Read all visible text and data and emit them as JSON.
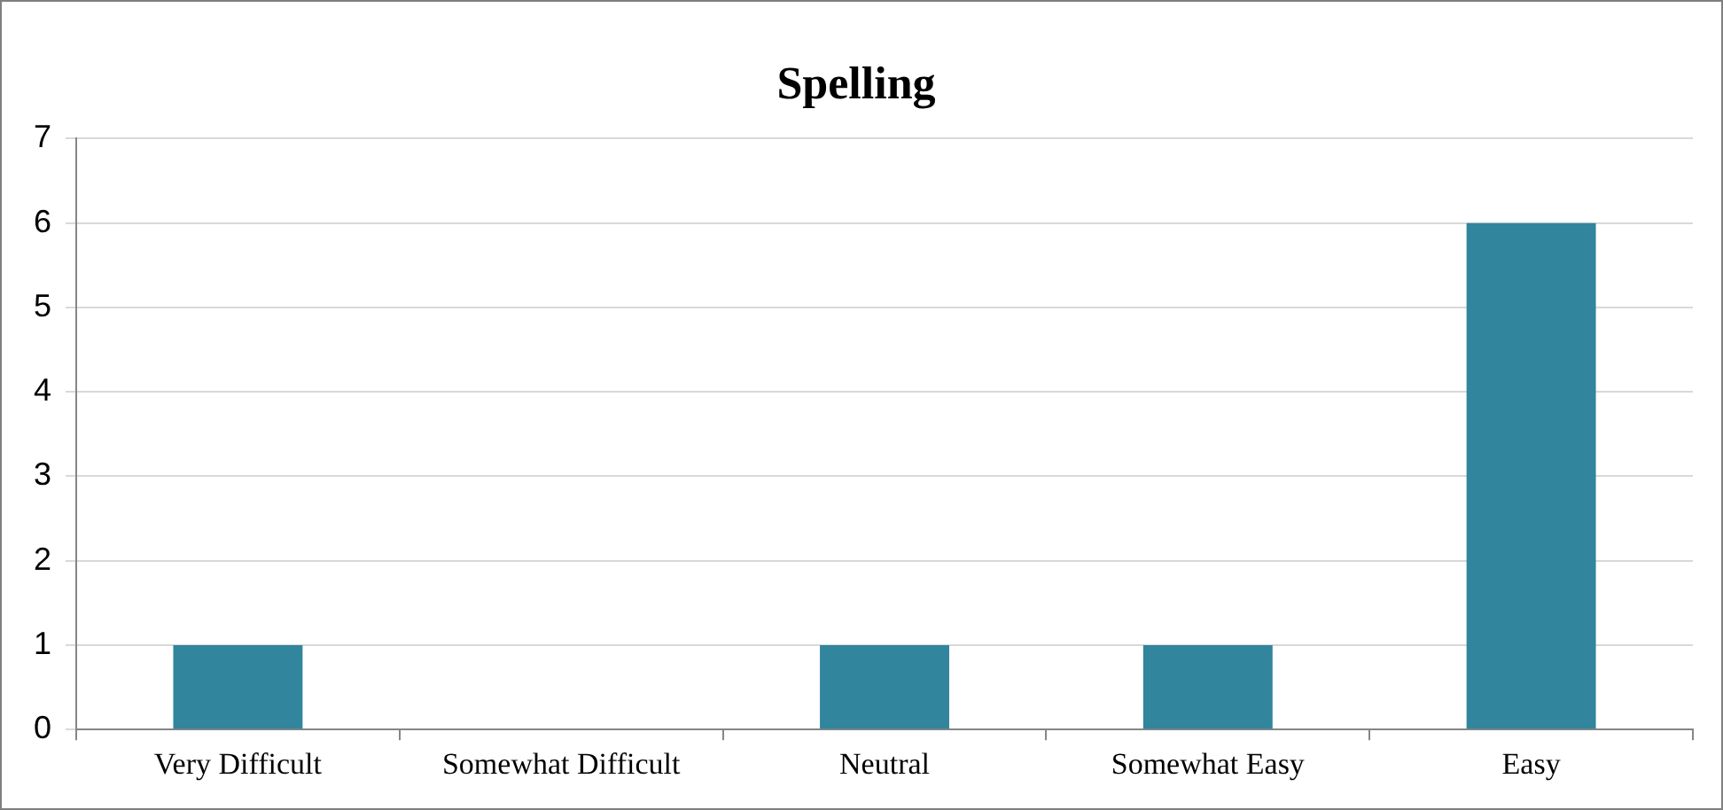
{
  "chart_data": {
    "type": "bar",
    "title": "Spelling",
    "categories": [
      "Very Difficult",
      "Somewhat Difficult",
      "Neutral",
      "Somewhat Easy",
      "Easy"
    ],
    "values": [
      1,
      0,
      1,
      1,
      6
    ],
    "color": "#31859c",
    "ylim": [
      0,
      7
    ],
    "yticks": [
      0,
      1,
      2,
      3,
      4,
      5,
      6,
      7
    ],
    "grid": "y",
    "legend": false
  }
}
